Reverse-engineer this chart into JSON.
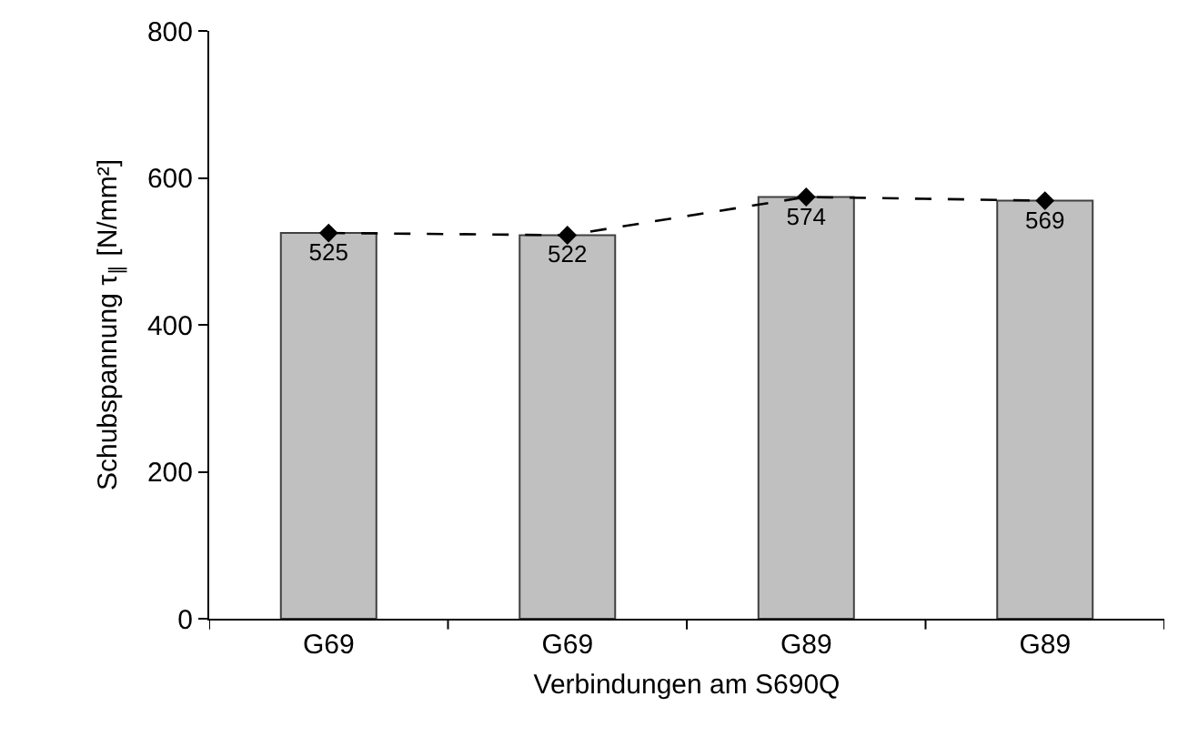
{
  "chart_data": {
    "type": "bar",
    "xlabel": "Verbindungen am S690Q",
    "ylabel": "Schubspannung τ$_{∥}$ [N/mm²]",
    "categories": [
      "G69",
      "G69",
      "G89",
      "G89"
    ],
    "series": [
      {
        "color": "#c0c0c0",
        "values": [
          525,
          522,
          574,
          569
        ],
        "value_labels": [
          "525",
          "522",
          "574",
          "569"
        ]
      },
      {
        "type": "line",
        "color": "#000000",
        "values": [
          525,
          522,
          574,
          569
        ],
        "marker": "diamond",
        "line_style": "dashed"
      }
    ],
    "ylim": [
      0,
      800
    ],
    "yticks": [
      0,
      200,
      400,
      600,
      800
    ],
    "grid": false
  }
}
